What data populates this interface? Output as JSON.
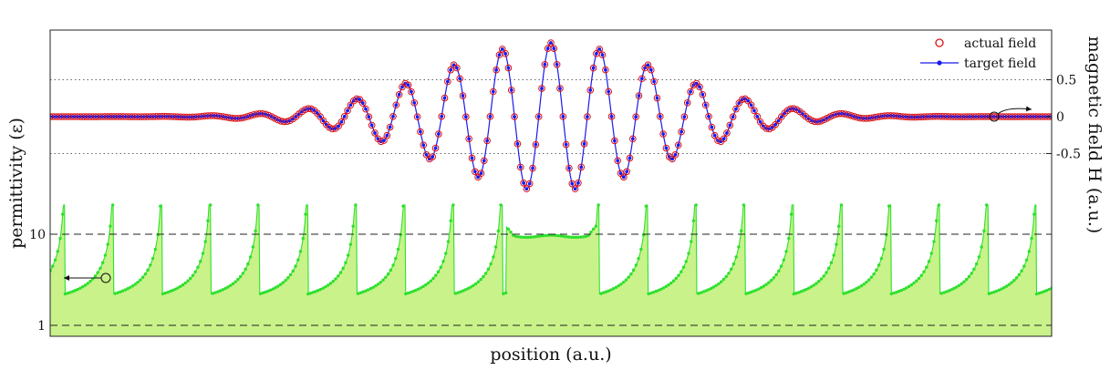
{
  "chart_data": {
    "type": "line",
    "title": "",
    "xlabel": "position (a.u.)",
    "ylabel_left": "permittivity (ε)",
    "ylabel_right": "magnetic field H (a.u.)",
    "left_axis": {
      "scale": "log",
      "ticks": [
        1,
        10
      ],
      "tick_labels": [
        "1",
        "10"
      ],
      "range": [
        0.89,
        50
      ],
      "gridlines": "dashed"
    },
    "right_axis": {
      "ticks": [
        0.5,
        0,
        -0.5
      ],
      "tick_labels": [
        "0.5",
        "0",
        "-0.5"
      ],
      "range": [
        -3.0,
        1.2
      ],
      "gridlines": "dotted"
    },
    "legend": {
      "placement": "top-right",
      "entries": [
        {
          "label": "actual field",
          "color": "#dd1111",
          "marker": "open-circle"
        },
        {
          "label": "target field",
          "color": "#1a1aee",
          "marker": "dot-line"
        }
      ]
    },
    "series": [
      {
        "name": "actual field",
        "axis": "right",
        "color": "#dd1111",
        "description_model": "gaussian-enveloped cosine",
        "amplitude": 1.0,
        "envelope_sigma": 0.115,
        "wavelength": 0.0485,
        "center": 0.5
      },
      {
        "name": "target field",
        "axis": "right",
        "color": "#1a1aee",
        "description_model": "gaussian-enveloped cosine",
        "amplitude": 1.0,
        "envelope_sigma": 0.115,
        "wavelength": 0.0485,
        "center": 0.5
      },
      {
        "name": "",
        "axis": "left",
        "color": "#2ee02e",
        "fill": "#c9f28a",
        "description_model": "periodic resonant permittivity profile",
        "period": 0.0485,
        "plateau_value": 9.5,
        "plateau_range": [
          0.455,
          0.545
        ]
      }
    ],
    "x_range": [
      0,
      1
    ],
    "annotations": [
      {
        "text": "arrow from left-axis circle",
        "points_to": "left axis"
      },
      {
        "text": "arrow from right circle",
        "points_to": "right axis"
      }
    ]
  },
  "colors": {
    "permittivity_line": "#2ee02e",
    "permittivity_fill": "#c9f28a",
    "actual_field": "#dd1111",
    "target_field": "#1a1aee"
  }
}
